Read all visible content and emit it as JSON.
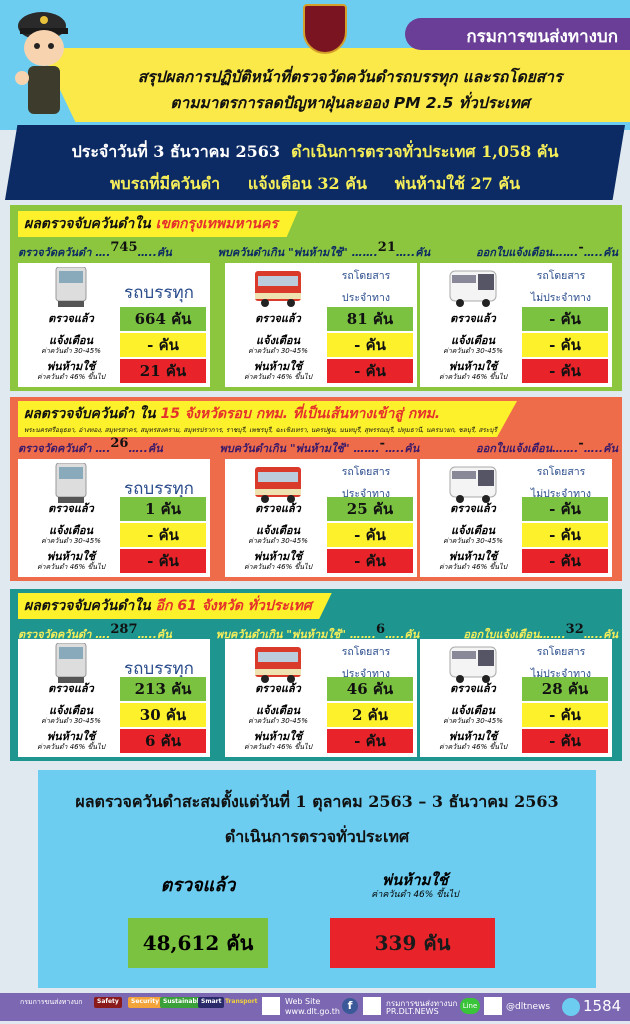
{
  "header": {
    "department": "กรมการขนส่งทางบก",
    "title_line1": "สรุปผลการปฏิบัติหน้าที่ตรวจวัดควันดำรถบรรทุก และรถโดยสาร",
    "title_line2": "ตามมาตรการลดปัญหาฝุ่นละออง PM 2.5 ทั่วประเทศ"
  },
  "banner": {
    "date": "ประจำวันที่ 3 ธันวาคม 2563",
    "inspected_text": "ดำเนินการตรวจทั่วประเทศ 1,058  คัน",
    "found_label": "พบรถที่มีควันดำ",
    "warned": "แจ้งเตือน  32 คัน",
    "banned": "พ่นห้ามใช้  27  คัน"
  },
  "labels": {
    "stat_measured": "ตรวจวัดควันดำ ….",
    "stat_banned": "พบควันดำเกิน \"พ่นห้ามใช้\" …….",
    "stat_warned": "ออกใบแจ้งเตือน…….",
    "unit_dots": "…..คัน",
    "checked": "ตรวจแล้ว",
    "warn": "แจ้งเตือน",
    "warn_sub": "ค่าควันดำ 30-45%",
    "ban": "พ่นห้ามใช้",
    "ban_sub": "ค่าควันดำ 46% ขึ้นไป",
    "truck": "รถบรรทุก",
    "bus_line1": "รถโดยสาร",
    "bus_line2": "ประจำทาง",
    "coach_line2": "ไม่ประจำทาง"
  },
  "sections": [
    {
      "title": "ผลตรวจจับควันดำใน",
      "title_highlight": "เขตกรุงเทพมหานคร",
      "subtitle": "",
      "measured": "745",
      "banned": "21",
      "warned": "-",
      "cards": [
        {
          "checked": "664 คัน",
          "warn": "- คัน",
          "ban": "21  คัน"
        },
        {
          "checked": "81  คัน",
          "warn": "- คัน",
          "ban": "- คัน"
        },
        {
          "checked": "- คัน",
          "warn": "- คัน",
          "ban": "- คัน"
        }
      ]
    },
    {
      "title": "ผลตรวจจับควันดำ ใน",
      "title_highlight": "15 จังหวัดรอบ กทม. ที่เป็นเส้นทางเข้าสู่ กทม.",
      "subtitle": "พระนครศรีอยุธยา, อ่างทอง, สมุทรสาคร, สมุทรสงคราม, สมุทรปราการ, ราชบุรี, เพชรบุรี, ฉะเชิงเทรา, นครปฐม, นนทบุรี, สุพรรณบุรี, ปทุมธานี, นครนายก, ชลบุรี, สระบุรี",
      "measured": "26",
      "banned": "-",
      "warned": "-",
      "cards": [
        {
          "checked": "1 คัน",
          "warn": "- คัน",
          "ban": "- คัน"
        },
        {
          "checked": "25 คัน",
          "warn": "- คัน",
          "ban": "- คัน"
        },
        {
          "checked": "- คัน",
          "warn": "- คัน",
          "ban": "- คัน"
        }
      ]
    },
    {
      "title": "ผลตรวจจับควันดำใน",
      "title_highlight": "อีก 61 จังหวัด ทั่วประเทศ",
      "subtitle": "",
      "measured": "287",
      "banned": "6",
      "warned": "32",
      "cards": [
        {
          "checked": "213 คัน",
          "warn": "30 คัน",
          "ban": "6 คัน"
        },
        {
          "checked": "46 คัน",
          "warn": "2  คัน",
          "ban": "- คัน"
        },
        {
          "checked": "28 คัน",
          "warn": "- คัน",
          "ban": "- คัน"
        }
      ]
    }
  ],
  "summary": {
    "line1": "ผลตรวจควันดำสะสมตั้งแต่วันที่ 1  ตุลาคม 2563 – 3 ธันวาคม  2563",
    "line2": "ดำเนินการตรวจทั่วประเทศ",
    "checked_label": "ตรวจแล้ว",
    "banned_label": "พ่นห้ามใช้",
    "banned_sub": "ค่าควันดำ 46% ขึ้นไป",
    "checked_value": "48,612 คัน",
    "banned_value": "339 คัน"
  },
  "footer": {
    "org": "กรมการขนส่งทางบก",
    "tags": [
      "Safety",
      "Security",
      "Sustainable",
      "Smart",
      "Transport"
    ],
    "website_label": "Web Site",
    "website": "www.dlt.go.th",
    "fb_name": "กรมการขนส่งทางบก",
    "fb_page": "PR.DLT.NEWS",
    "line_label": "Line",
    "line_id": "@dltnews",
    "hotline": "1584"
  },
  "colors": {
    "purple": "#6a3d96",
    "navy": "#0c2a63",
    "green_section": "#8cc63f",
    "orange_section": "#ef6c4a",
    "teal_section": "#1f9590",
    "checked": "#7cc241",
    "warn": "#fdf12c",
    "ban": "#e8232a"
  }
}
